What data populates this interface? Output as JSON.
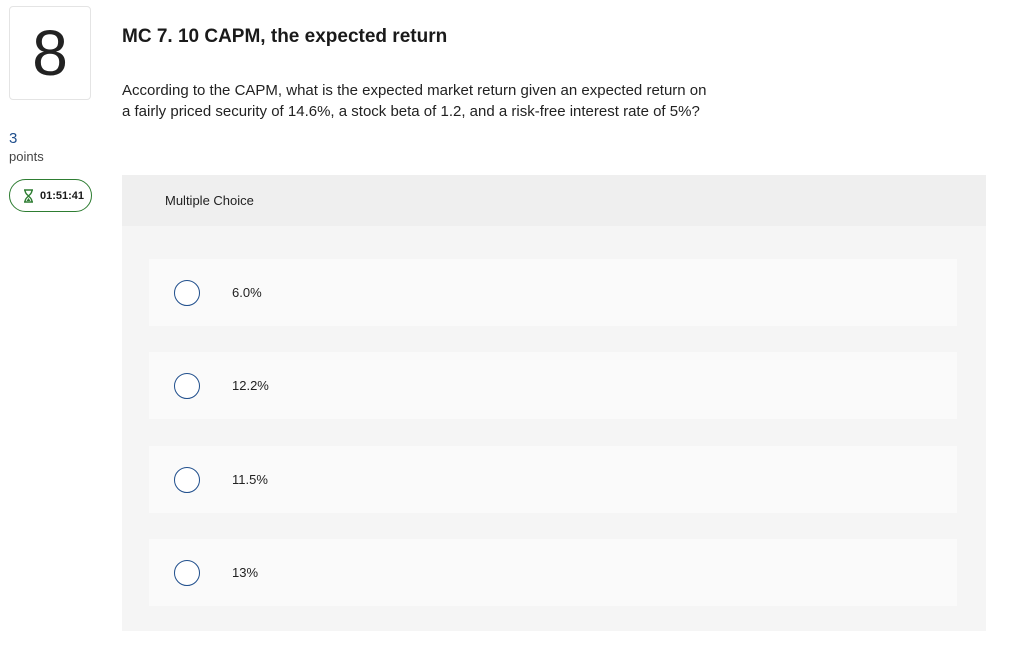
{
  "question": {
    "number": "8",
    "points_value": "3",
    "points_label": "points",
    "timer": "01:51:41",
    "title": "MC 7. 10 CAPM, the expected return",
    "text_line1": "According to the CAPM, what is the expected market return given an expected return on",
    "text_line2": "a fairly priced security of 14.6%, a stock beta of 1.2, and a risk-free interest rate of 5%?"
  },
  "multiple_choice": {
    "header": "Multiple Choice",
    "options": [
      {
        "label": "6.0%"
      },
      {
        "label": "12.2%"
      },
      {
        "label": "11.5%"
      },
      {
        "label": "13%"
      }
    ]
  },
  "colors": {
    "accent": "#1f4e8c",
    "timer_border": "#2e7d32"
  },
  "icons": {
    "timer": "hourglass-icon",
    "option": "radio-unchecked"
  }
}
